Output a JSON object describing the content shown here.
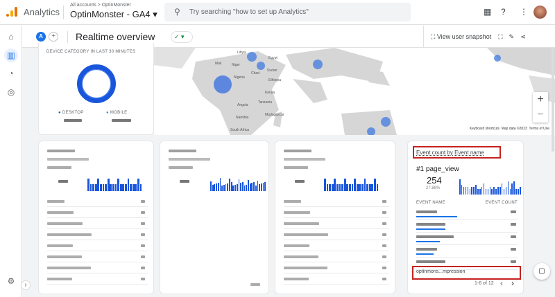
{
  "header": {
    "app_name": "Analytics",
    "breadcrumb": "All accounts > OptinMonster",
    "property": "OptinMonster - GA4 ▾",
    "search_placeholder": "Try searching \"how to set up Analytics\"",
    "icons": [
      "apps-icon",
      "help-icon",
      "more-vert-icon",
      "avatar"
    ]
  },
  "sidebar": {
    "items": [
      {
        "icon": "home-icon",
        "glyph": "⌂"
      },
      {
        "icon": "reports-icon",
        "glyph": "▥"
      },
      {
        "icon": "explore-icon",
        "glyph": "◔"
      },
      {
        "icon": "advertising-icon",
        "glyph": "◎"
      }
    ],
    "settings_glyph": "⚙",
    "collapse_glyph": "›"
  },
  "subheader": {
    "comparison_chip": "A",
    "add_glyph": "+",
    "title": "Realtime overview",
    "status_glyph": "✓ ▾",
    "view_snapshot": "View user snapshot"
  },
  "map": {
    "zoom_in": "+",
    "zoom_out": "−",
    "attribution": [
      "Keyboard shortcuts",
      "Map data ©2023",
      "Terms of Use"
    ],
    "labels": [
      "Mali",
      "Niger",
      "Chad",
      "Sudan",
      "Nigeria",
      "Ethiopia",
      "Kenya",
      "Tanzania",
      "Angola",
      "Namibia",
      "Madagascar",
      "South Africa",
      "Egypt",
      "Libya"
    ]
  },
  "device_card": {
    "title": "DEVICE CATEGORY IN LAST 30 MINUTES",
    "legend": [
      {
        "label": "DESKTOP",
        "color": "#1a56db"
      },
      {
        "label": "MOBILE",
        "color": "#4285f4"
      }
    ]
  },
  "event_card": {
    "title": "Event count by Event name",
    "top_rank": "#1 page_view",
    "top_value": "254",
    "top_percent": "27.88%",
    "col_name": "EVENT NAME",
    "col_count": "EVENT COUNT",
    "highlight_row": "optinmons...mpression",
    "pagination": "1-6 of 12",
    "prev": "‹",
    "next": "›",
    "bar_values": [
      8,
      5,
      4,
      4,
      4,
      3,
      4,
      4,
      5,
      3,
      3,
      4,
      6,
      3,
      3,
      4,
      3,
      4,
      3,
      4,
      4,
      6,
      3,
      4,
      7,
      3,
      6,
      7,
      3,
      3,
      4
    ],
    "row_fill": [
      0.42,
      0.3,
      0.24,
      0.18,
      0.12,
      0.1
    ]
  },
  "accent": "#1a73e8",
  "highlight": "#c5221f"
}
